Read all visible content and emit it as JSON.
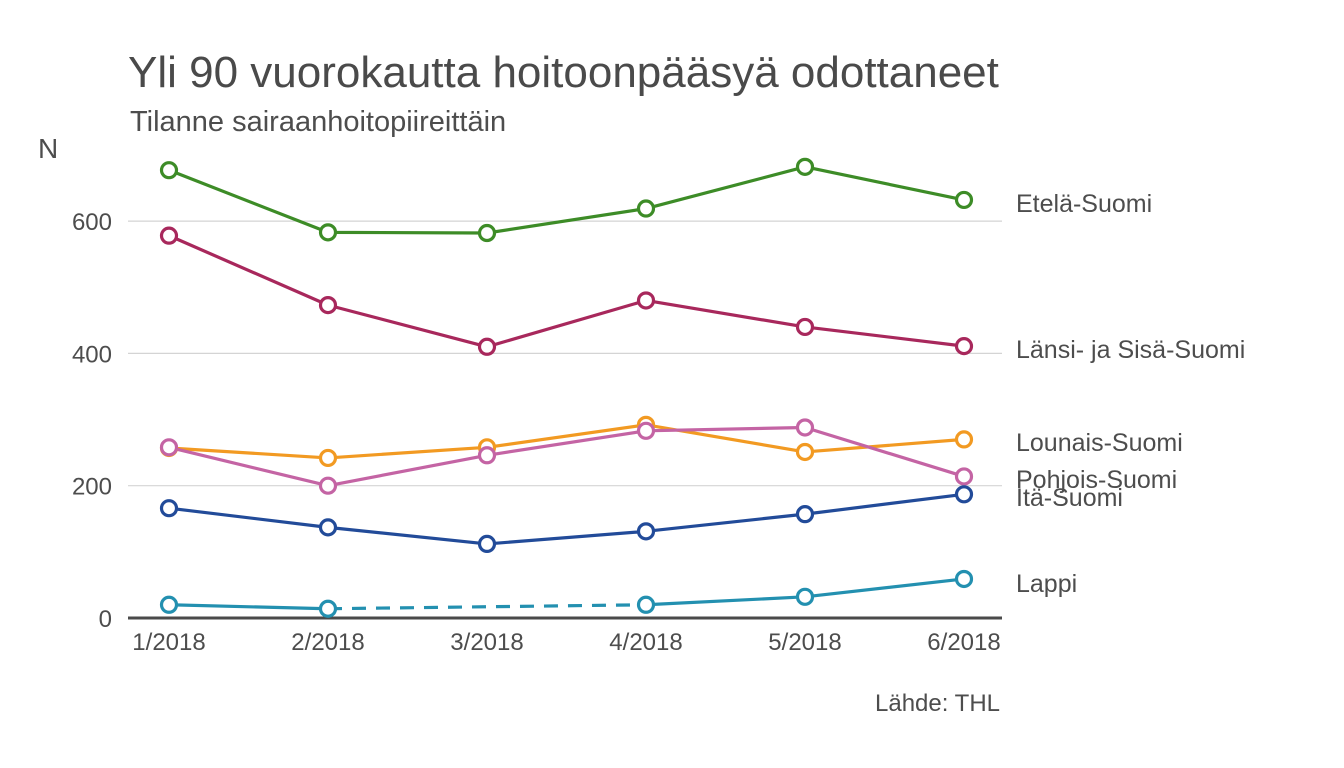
{
  "chart_data": {
    "type": "line",
    "title": "Yli 90 vuorokautta hoitoonpääsyä odottaneet",
    "subtitle": "Tilanne sairaanhoitopiireittäin",
    "ylabel": "N",
    "xlabel": "",
    "caption": "Lähde: THL",
    "categories": [
      "1/2018",
      "2/2018",
      "3/2018",
      "4/2018",
      "5/2018",
      "6/2018"
    ],
    "yticks": [
      0,
      200,
      400,
      600
    ],
    "ylim": [
      0,
      700
    ],
    "grid": "horizontal",
    "legend": "direct labels at right end of lines",
    "series": [
      {
        "name": "Etelä-Suomi",
        "color": "#3d8c27",
        "values": [
          677,
          583,
          582,
          619,
          682,
          632
        ]
      },
      {
        "name": "Länsi- ja Sisä-Suomi",
        "color": "#a8285c",
        "values": [
          578,
          473,
          410,
          480,
          440,
          411
        ]
      },
      {
        "name": "Lounais-Suomi",
        "color": "#f29a22",
        "values": [
          257,
          242,
          258,
          292,
          251,
          270
        ]
      },
      {
        "name": "Pohjois-Suomi",
        "color": "#c464a4",
        "values": [
          258,
          200,
          246,
          283,
          288,
          214
        ]
      },
      {
        "name": "Itä-Suomi",
        "color": "#224b99",
        "values": [
          166,
          137,
          112,
          131,
          157,
          187
        ]
      },
      {
        "name": "Lappi",
        "color": "#2390b0",
        "values": [
          20,
          14,
          null,
          20,
          32,
          59
        ],
        "dashed_gap": [
          1,
          3
        ]
      }
    ]
  }
}
